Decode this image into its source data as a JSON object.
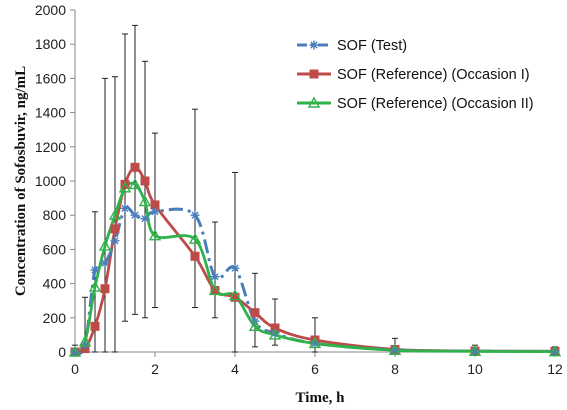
{
  "chart_data": {
    "type": "line",
    "xlabel": "Time, h",
    "ylabel": "Concentration of Sofosbuvir, ng/mL",
    "xlim": [
      0,
      12
    ],
    "ylim": [
      0,
      2000
    ],
    "xticks": [
      0,
      2,
      4,
      6,
      8,
      10,
      12
    ],
    "yticks": [
      0,
      200,
      400,
      600,
      800,
      1000,
      1200,
      1400,
      1600,
      1800,
      2000
    ],
    "grid": false,
    "legend_position": "top-right",
    "series": [
      {
        "name": "SOF (Test)",
        "color": "#4a7ebb",
        "style": "dash-dot",
        "marker": "star",
        "x": [
          0,
          0.25,
          0.5,
          0.75,
          1,
          1.25,
          1.5,
          1.75,
          2,
          3,
          3.5,
          4,
          4.5,
          5,
          6,
          8,
          10,
          12
        ],
        "y": [
          0,
          40,
          480,
          520,
          650,
          840,
          800,
          780,
          820,
          800,
          440,
          490,
          180,
          110,
          50,
          12,
          5,
          3
        ]
      },
      {
        "name": "SOF (Reference) (Occasion I)",
        "color": "#be4b48",
        "style": "solid",
        "marker": "square",
        "x": [
          0,
          0.25,
          0.5,
          0.75,
          1,
          1.25,
          1.5,
          1.75,
          2,
          3,
          3.5,
          4,
          4.5,
          5,
          6,
          8,
          10,
          12
        ],
        "y": [
          0,
          20,
          150,
          370,
          720,
          980,
          1080,
          1000,
          860,
          560,
          360,
          320,
          230,
          140,
          70,
          15,
          6,
          4
        ]
      },
      {
        "name": "SOF (Reference) (Occasion II)",
        "color": "#2fb24a",
        "style": "solid",
        "marker": "triangle",
        "x": [
          0,
          0.25,
          0.5,
          0.75,
          1,
          1.25,
          1.5,
          1.75,
          2,
          3,
          3.5,
          4,
          4.5,
          5,
          6,
          8,
          10,
          12
        ],
        "y": [
          0,
          60,
          380,
          620,
          800,
          960,
          980,
          880,
          680,
          660,
          360,
          330,
          150,
          100,
          50,
          10,
          4,
          2
        ]
      }
    ],
    "error_bars": {
      "x": [
        0,
        0.25,
        0.5,
        0.75,
        1,
        1.25,
        1.5,
        1.75,
        2,
        3,
        3.5,
        4,
        4.5,
        5,
        6,
        8,
        10,
        12
      ],
      "low": [
        0,
        0,
        0,
        0,
        0,
        180,
        220,
        200,
        260,
        260,
        200,
        0,
        30,
        40,
        0,
        0,
        0,
        0
      ],
      "high": [
        40,
        320,
        820,
        1600,
        1610,
        1860,
        1910,
        1700,
        1280,
        1420,
        760,
        1050,
        460,
        310,
        200,
        80,
        40,
        30
      ]
    }
  }
}
